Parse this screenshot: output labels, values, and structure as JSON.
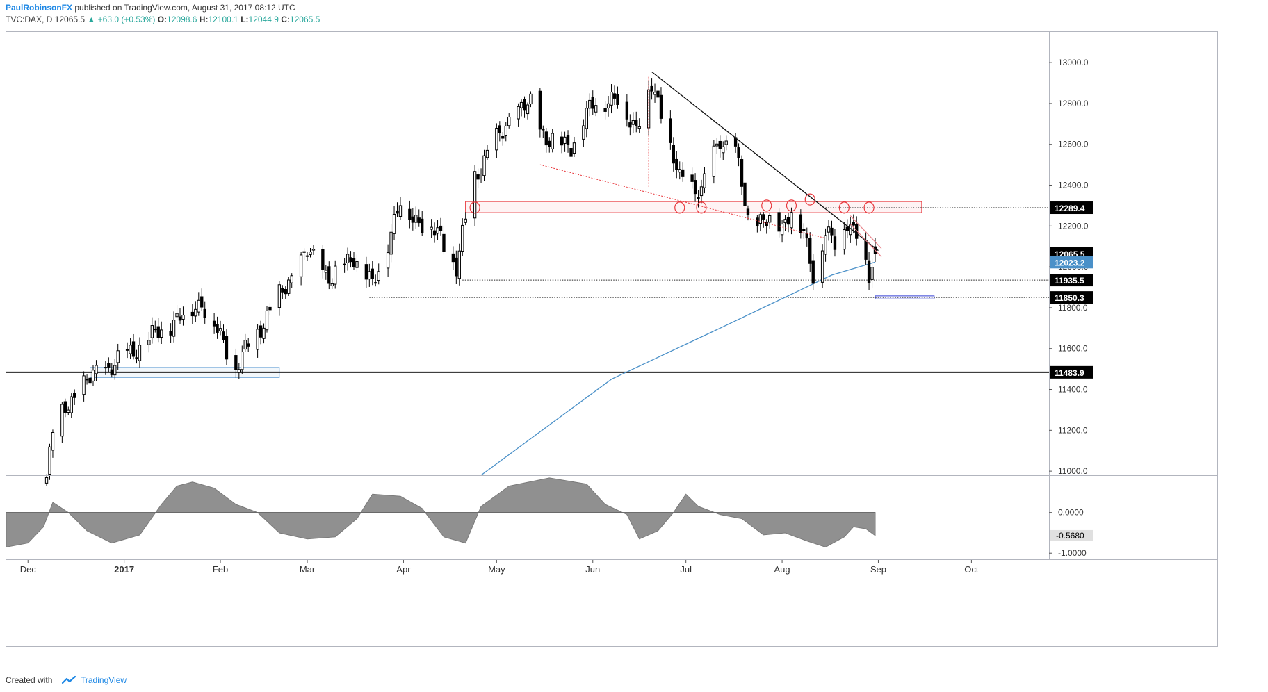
{
  "header": {
    "author": "PaulRobinsonFX",
    "published": "published on TradingView.com, August 31, 2017 08:12 UTC",
    "symbol": "TVC:DAX, D",
    "last": "12065.5",
    "change": "▲ +63.0 (+0.53%)",
    "o_label": "O:",
    "o_value": "12098.6",
    "h_label": "H:",
    "h_value": "12100.1",
    "l_label": "L:",
    "l_value": "12044.9",
    "c_label": "C:",
    "c_value": "12065.5"
  },
  "footer": {
    "created_with": "Created with",
    "brand": "TradingView",
    "icon": "tradingview-logo-icon"
  },
  "colors": {
    "up": "#ffffff",
    "down": "#000000",
    "ma": "#4a90c8",
    "zone": "#e8383d",
    "support_box": "#7fb0dc",
    "oscillator": "#909090"
  },
  "chart_data": {
    "type": "candlestick",
    "symbol": "TVC:DAX",
    "interval": "D",
    "price_axis": {
      "ylim": [
        10980,
        13150
      ],
      "ticks": [
        11000,
        11200,
        11400,
        11600,
        11800,
        12000,
        12200,
        12400,
        12600,
        12800,
        13000
      ],
      "tick_labels": [
        "11000.0",
        "11200.0",
        "11400.0",
        "11600.0",
        "11800.0",
        "12000.0",
        "12200.0",
        "12400.0",
        "12600.0",
        "12800.0",
        "13000.0"
      ]
    },
    "time_axis": {
      "start": "2016-11-24",
      "end": "2017-10-26",
      "labels": [
        {
          "date": "2016-12-01",
          "text": "Dec"
        },
        {
          "date": "2017-01-01",
          "text": "2017"
        },
        {
          "date": "2017-02-01",
          "text": "Feb"
        },
        {
          "date": "2017-03-01",
          "text": "Mar"
        },
        {
          "date": "2017-04-01",
          "text": "Apr"
        },
        {
          "date": "2017-05-01",
          "text": "May"
        },
        {
          "date": "2017-06-01",
          "text": "Jun"
        },
        {
          "date": "2017-07-01",
          "text": "Jul"
        },
        {
          "date": "2017-08-01",
          "text": "Aug"
        },
        {
          "date": "2017-09-01",
          "text": "Sep"
        },
        {
          "date": "2017-10-01",
          "text": "Oct"
        }
      ]
    },
    "key_points": [
      {
        "date": "2016-12-07",
        "close": 10990
      },
      {
        "date": "2016-12-09",
        "close": 11200
      },
      {
        "date": "2016-12-13",
        "close": 11300
      },
      {
        "date": "2016-12-19",
        "close": 11430
      },
      {
        "date": "2017-01-03",
        "close": 11580
      },
      {
        "date": "2017-01-26",
        "close": 11830
      },
      {
        "date": "2017-02-06",
        "close": 11510
      },
      {
        "date": "2017-02-16",
        "close": 11760
      },
      {
        "date": "2017-03-01",
        "close": 12070
      },
      {
        "date": "2017-03-09",
        "close": 11940
      },
      {
        "date": "2017-03-16",
        "close": 12060
      },
      {
        "date": "2017-03-22",
        "close": 11900
      },
      {
        "date": "2017-03-31",
        "close": 12310
      },
      {
        "date": "2017-04-04",
        "close": 12250
      },
      {
        "date": "2017-04-13",
        "close": 12150
      },
      {
        "date": "2017-04-18",
        "close": 11990
      },
      {
        "date": "2017-04-24",
        "close": 12450
      },
      {
        "date": "2017-05-05",
        "close": 12720
      },
      {
        "date": "2017-05-12",
        "close": 12800
      },
      {
        "date": "2017-05-17",
        "close": 12620
      },
      {
        "date": "2017-05-25",
        "close": 12600
      },
      {
        "date": "2017-06-02",
        "close": 12820
      },
      {
        "date": "2017-06-09",
        "close": 12810
      },
      {
        "date": "2017-06-15",
        "close": 12690
      },
      {
        "date": "2017-06-20",
        "close": 12880
      },
      {
        "date": "2017-06-23",
        "close": 12760
      },
      {
        "date": "2017-06-29",
        "close": 12420
      },
      {
        "date": "2017-07-06",
        "close": 12380
      },
      {
        "date": "2017-07-12",
        "close": 12620
      },
      {
        "date": "2017-07-17",
        "close": 12570
      },
      {
        "date": "2017-07-21",
        "close": 12220
      },
      {
        "date": "2017-07-26",
        "close": 12240
      },
      {
        "date": "2017-08-01",
        "close": 12190
      },
      {
        "date": "2017-08-04",
        "close": 12300
      },
      {
        "date": "2017-08-08",
        "close": 12150
      },
      {
        "date": "2017-08-11",
        "close": 11960
      },
      {
        "date": "2017-08-15",
        "close": 12180
      },
      {
        "date": "2017-08-18",
        "close": 12100
      },
      {
        "date": "2017-08-22",
        "close": 12230
      },
      {
        "date": "2017-08-25",
        "close": 12170
      },
      {
        "date": "2017-08-29",
        "close": 11940
      },
      {
        "date": "2017-08-30",
        "close": 12000
      },
      {
        "date": "2017-08-31",
        "close": 12065.5
      }
    ],
    "last_candle": {
      "date": "2017-08-31",
      "open": 12098.6,
      "high": 12100.1,
      "low": 12044.9,
      "close": 12065.5
    },
    "moving_average": [
      {
        "date": "2017-04-26",
        "value": 10980
      },
      {
        "date": "2017-06-07",
        "value": 11450
      },
      {
        "date": "2017-07-12",
        "value": 11700
      },
      {
        "date": "2017-08-17",
        "value": 11960
      },
      {
        "date": "2017-08-31",
        "value": 12023.2
      }
    ],
    "levels": [
      {
        "value": 12289.4,
        "label": "12289.4",
        "style": "dotted",
        "from": "2017-08-15"
      },
      {
        "value": 11935.5,
        "label": "11935.5",
        "style": "dotted",
        "from": "2017-04-20"
      },
      {
        "value": 11850.3,
        "label": "11850.3",
        "style": "dotted",
        "from": "2017-03-21"
      },
      {
        "value": 11483.9,
        "label": "11483.9",
        "style": "solid",
        "from": "2016-11-24"
      }
    ],
    "price_labels": [
      {
        "value": 12065.5,
        "label": "12065.5",
        "kind": "last"
      },
      {
        "value": 12023.2,
        "label": "12023.2",
        "kind": "ma"
      }
    ],
    "resistance_zone": {
      "from": "2017-04-21",
      "to": "2017-09-15",
      "low": 12265,
      "high": 12320
    },
    "support_zone": {
      "from": "2016-12-21",
      "to": "2017-02-20",
      "low": 11458,
      "high": 11508
    },
    "target_box": {
      "from": "2017-08-31",
      "to": "2017-09-19",
      "low": 11843,
      "high": 11858
    },
    "trendline": {
      "from": {
        "date": "2017-06-20",
        "value": 12955
      },
      "to": {
        "date": "2017-09-01",
        "value": 12080
      }
    },
    "trend_channel": {
      "from": {
        "date": "2017-08-23",
        "value": 12230
      },
      "to": {
        "date": "2017-09-02",
        "value": 12070
      }
    },
    "dotted_red_line": {
      "from": {
        "date": "2017-05-15",
        "value": 12500
      },
      "to": {
        "date": "2017-08-15",
        "value": 12140
      }
    },
    "dotted_red_vertical": {
      "date": "2017-06-19",
      "from": 12930,
      "to": 12390
    },
    "touch_circles": [
      {
        "date": "2017-04-24",
        "value": 12290
      },
      {
        "date": "2017-06-29",
        "value": 12290
      },
      {
        "date": "2017-07-06",
        "value": 12290
      },
      {
        "date": "2017-07-27",
        "value": 12300
      },
      {
        "date": "2017-08-04",
        "value": 12300
      },
      {
        "date": "2017-08-10",
        "value": 12330
      },
      {
        "date": "2017-08-21",
        "value": 12290
      },
      {
        "date": "2017-08-29",
        "value": 12290
      }
    ],
    "oscillator": {
      "ylim": [
        -1.15,
        0.9
      ],
      "ticks": [
        0.0,
        -1.0
      ],
      "tick_labels": [
        "0.0000",
        "-1.0000"
      ],
      "last_label": "-0.5680",
      "last_value": -0.568,
      "points": [
        {
          "date": "2016-11-24",
          "value": -0.85
        },
        {
          "date": "2016-12-01",
          "value": -0.75
        },
        {
          "date": "2016-12-06",
          "value": -0.35
        },
        {
          "date": "2016-12-09",
          "value": 0.25
        },
        {
          "date": "2016-12-14",
          "value": 0.0
        },
        {
          "date": "2016-12-20",
          "value": -0.45
        },
        {
          "date": "2016-12-28",
          "value": -0.75
        },
        {
          "date": "2017-01-06",
          "value": -0.55
        },
        {
          "date": "2017-01-13",
          "value": 0.2
        },
        {
          "date": "2017-01-18",
          "value": 0.65
        },
        {
          "date": "2017-01-23",
          "value": 0.75
        },
        {
          "date": "2017-01-30",
          "value": 0.6
        },
        {
          "date": "2017-02-06",
          "value": 0.2
        },
        {
          "date": "2017-02-13",
          "value": 0.0
        },
        {
          "date": "2017-02-20",
          "value": -0.5
        },
        {
          "date": "2017-03-01",
          "value": -0.65
        },
        {
          "date": "2017-03-10",
          "value": -0.6
        },
        {
          "date": "2017-03-17",
          "value": -0.15
        },
        {
          "date": "2017-03-22",
          "value": 0.45
        },
        {
          "date": "2017-03-31",
          "value": 0.4
        },
        {
          "date": "2017-04-07",
          "value": 0.1
        },
        {
          "date": "2017-04-14",
          "value": -0.6
        },
        {
          "date": "2017-04-21",
          "value": -0.75
        },
        {
          "date": "2017-04-26",
          "value": 0.15
        },
        {
          "date": "2017-05-05",
          "value": 0.65
        },
        {
          "date": "2017-05-18",
          "value": 0.85
        },
        {
          "date": "2017-05-30",
          "value": 0.7
        },
        {
          "date": "2017-06-05",
          "value": 0.2
        },
        {
          "date": "2017-06-12",
          "value": -0.05
        },
        {
          "date": "2017-06-16",
          "value": -0.65
        },
        {
          "date": "2017-06-22",
          "value": -0.45
        },
        {
          "date": "2017-06-27",
          "value": 0.0
        },
        {
          "date": "2017-07-01",
          "value": 0.45
        },
        {
          "date": "2017-07-05",
          "value": 0.15
        },
        {
          "date": "2017-07-12",
          "value": -0.05
        },
        {
          "date": "2017-07-19",
          "value": -0.15
        },
        {
          "date": "2017-07-26",
          "value": -0.55
        },
        {
          "date": "2017-08-02",
          "value": -0.5
        },
        {
          "date": "2017-08-09",
          "value": -0.7
        },
        {
          "date": "2017-08-15",
          "value": -0.85
        },
        {
          "date": "2017-08-21",
          "value": -0.6
        },
        {
          "date": "2017-08-24",
          "value": -0.35
        },
        {
          "date": "2017-08-28",
          "value": -0.4
        },
        {
          "date": "2017-08-31",
          "value": -0.568
        }
      ]
    }
  }
}
